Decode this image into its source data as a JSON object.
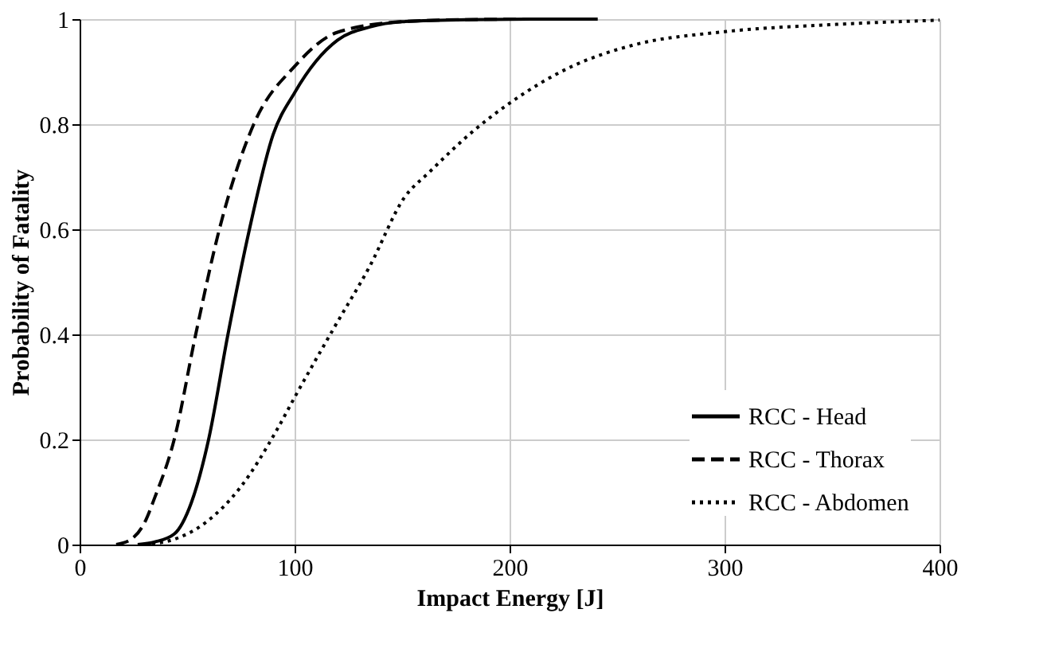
{
  "chart_data": {
    "type": "line",
    "xlabel": "Impact Energy [J]",
    "ylabel": "Probability of Fatality",
    "xlim": [
      0,
      400
    ],
    "xticks": [
      0,
      100,
      200,
      300,
      400
    ],
    "ylim": [
      0,
      1
    ],
    "yticks": [
      0,
      0.2,
      0.4,
      0.6,
      0.8,
      1
    ],
    "grid": true,
    "legend": "bottom right",
    "series": [
      {
        "name": "RCC - Head",
        "color": "#000000",
        "line_style": "solid",
        "x": [
          27,
          35,
          44,
          52,
          60,
          69,
          79,
          90,
          100,
          110,
          120,
          135,
          150,
          180,
          210,
          241
        ],
        "values": [
          0,
          0.005,
          0.02,
          0.08,
          0.2,
          0.4,
          0.6,
          0.78,
          0.86,
          0.92,
          0.96,
          0.985,
          0.995,
          0.999,
          1,
          1
        ]
      },
      {
        "name": "RCC - Thorax",
        "color": "#000000",
        "line_style": "dashed",
        "x": [
          17,
          24,
          30,
          35,
          44,
          54,
          65,
          81,
          100,
          120,
          150,
          180,
          210,
          241
        ],
        "values": [
          0,
          0.01,
          0.04,
          0.09,
          0.2,
          0.4,
          0.6,
          0.8,
          0.91,
          0.975,
          0.995,
          0.999,
          1,
          1
        ]
      },
      {
        "name": "RCC - Abdomen",
        "color": "#000000",
        "line_style": "dotted",
        "x": [
          30,
          44,
          58,
          75,
          92,
          100,
          118,
          135,
          151,
          163,
          184,
          200,
          229,
          257,
          300,
          352,
          400
        ],
        "values": [
          0,
          0.01,
          0.04,
          0.11,
          0.22,
          0.28,
          0.41,
          0.53,
          0.66,
          0.71,
          0.79,
          0.84,
          0.91,
          0.95,
          0.976,
          0.99,
          0.998
        ]
      }
    ]
  }
}
